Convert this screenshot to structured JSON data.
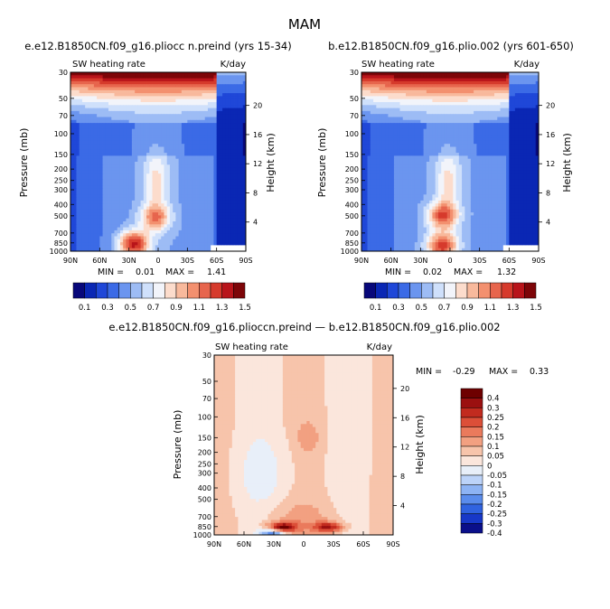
{
  "figure": {
    "title": "MAM"
  },
  "colors": {
    "abs_palette": [
      "#08087a",
      "#0a27b4",
      "#1f47d8",
      "#3b6ae6",
      "#6b95ef",
      "#9dbcf5",
      "#cfe0fb",
      "#f2f4fa",
      "#fcdccc",
      "#f8b99c",
      "#f3906f",
      "#e7654d",
      "#d63a2c",
      "#b8141a",
      "#7d0508"
    ],
    "diff_palette": [
      "#0a0f8a",
      "#1738c8",
      "#3063e0",
      "#5a8cec",
      "#8db3f4",
      "#bcd3f9",
      "#e8eff9",
      "#fbe6dc",
      "#f7c4ab",
      "#f2a081",
      "#ea7a5c",
      "#dc4f38",
      "#c22b1f",
      "#9b1010",
      "#6e0000"
    ]
  },
  "chart_data": [
    {
      "type": "heatmap",
      "title": "e.e12.B1850CN.f09_g16.pliocc n.preind (yrs 15-34)",
      "subtitle_left": "SW heating rate",
      "subtitle_right": "K/day",
      "xlabel": "",
      "ylabel": "Pressure (mb)",
      "ylabel_right": "Height (km)",
      "x_ticks": [
        "90N",
        "60N",
        "30N",
        "0",
        "30S",
        "60S",
        "90S"
      ],
      "y_ticks": [
        "30",
        "50",
        "70",
        "100",
        "150",
        "200",
        "250",
        "300",
        "400",
        "500",
        "700",
        "850",
        "1000"
      ],
      "height_ticks": [
        "20",
        "16",
        "12",
        "8",
        "4"
      ],
      "min_label": "MIN =",
      "min_value": "0.01",
      "max_label": "MAX =",
      "max_value": "1.41",
      "colorbar_labels": [
        "0.1",
        "0.3",
        "0.5",
        "0.7",
        "0.9",
        "1.1",
        "1.3",
        "1.5"
      ],
      "peaks": [
        {
          "lat": 25,
          "p": 870,
          "value": 1.41
        },
        {
          "lat": 3,
          "p": 520,
          "value": 1.1
        }
      ]
    },
    {
      "type": "heatmap",
      "title": "b.e12.B1850CN.f09_g16.plio.002 (yrs 601-650)",
      "subtitle_left": "SW heating rate",
      "subtitle_right": "K/day",
      "xlabel": "",
      "ylabel": "Pressure (mb)",
      "ylabel_right": "Height (km)",
      "x_ticks": [
        "90N",
        "60N",
        "30N",
        "0",
        "30S",
        "60S",
        "90S"
      ],
      "y_ticks": [
        "30",
        "50",
        "70",
        "100",
        "150",
        "200",
        "250",
        "300",
        "400",
        "500",
        "700",
        "850",
        "1000"
      ],
      "height_ticks": [
        "20",
        "16",
        "12",
        "8",
        "4"
      ],
      "min_label": "MIN =",
      "min_value": "0.02",
      "max_label": "MAX =",
      "max_value": "1.32",
      "colorbar_labels": [
        "0.1",
        "0.3",
        "0.5",
        "0.7",
        "0.9",
        "1.1",
        "1.3",
        "1.5"
      ],
      "peaks": [
        {
          "lat": 8,
          "p": 500,
          "value": 1.2
        },
        {
          "lat": 8,
          "p": 900,
          "value": 1.32
        }
      ]
    },
    {
      "type": "heatmap",
      "title": "e.e12.B1850CN.f09_g16.plioccn.preind — b.e12.B1850CN.f09_g16.plio.002",
      "subtitle_left": "SW heating rate",
      "subtitle_right": "K/day",
      "xlabel": "",
      "ylabel": "Pressure (mb)",
      "ylabel_right": "Height (km)",
      "x_ticks": [
        "90N",
        "60N",
        "30N",
        "0",
        "30S",
        "60S",
        "90S"
      ],
      "y_ticks": [
        "30",
        "50",
        "70",
        "100",
        "150",
        "200",
        "250",
        "300",
        "400",
        "500",
        "700",
        "850",
        "1000"
      ],
      "height_ticks": [
        "20",
        "16",
        "12",
        "8",
        "4"
      ],
      "min_label": "MIN =",
      "min_value": "-0.29",
      "max_label": "MAX =",
      "max_value": "0.33",
      "colorbar_labels": [
        "0.4",
        "0.3",
        "0.25",
        "0.2",
        "0.15",
        "0.1",
        "0.05",
        "0",
        "-0.05",
        "-0.1",
        "-0.15",
        "-0.2",
        "-0.25",
        "-0.3",
        "-0.4"
      ],
      "peaks": [
        {
          "lat": 22,
          "p": 870,
          "value": 0.33
        },
        {
          "lat": -25,
          "p": 860,
          "value": 0.25
        },
        {
          "lat": 30,
          "p": 970,
          "value": -0.29
        }
      ]
    }
  ]
}
